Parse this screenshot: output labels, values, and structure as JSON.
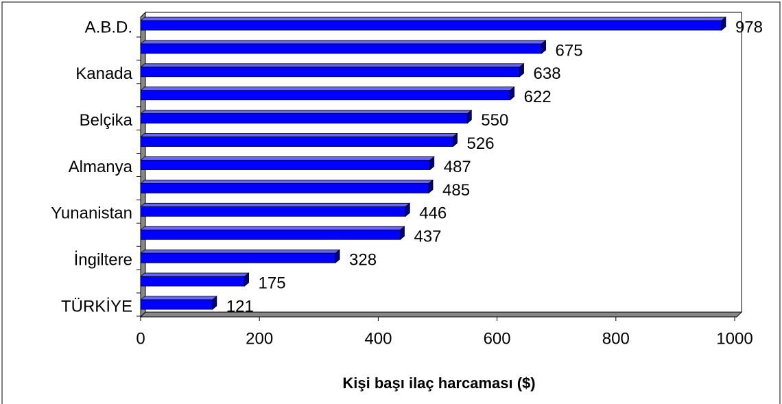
{
  "chart_data": {
    "type": "bar",
    "orientation": "horizontal",
    "x_label": "Kişi başı ilaç harcaması ($)",
    "categories": [
      "A.B.D.",
      null,
      "Kanada",
      null,
      "Belçika",
      null,
      "Almanya",
      null,
      "Yunanistan",
      null,
      "İngiltere",
      null,
      "TÜRKİYE"
    ],
    "values": [
      978,
      675,
      638,
      622,
      550,
      526,
      487,
      485,
      446,
      437,
      328,
      175,
      121
    ],
    "color": "#0000ff",
    "xlim": [
      0,
      1000
    ],
    "xticks": [
      0,
      200,
      400,
      600,
      800,
      1000
    ]
  }
}
